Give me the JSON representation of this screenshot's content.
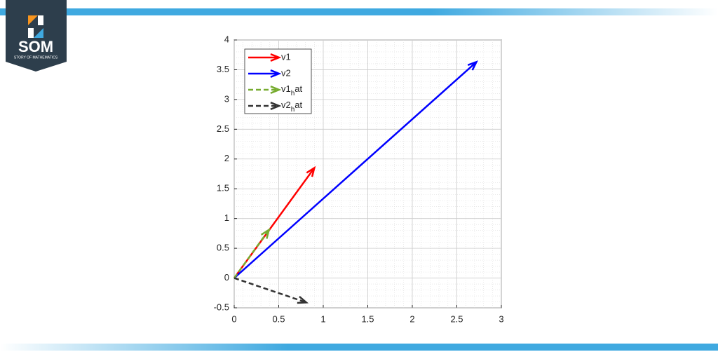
{
  "logo": {
    "name": "SOM",
    "tagline": "STORY OF MATHEMATICS"
  },
  "chart_data": {
    "type": "vector",
    "series": [
      {
        "name": "v1",
        "color": "#ff0000",
        "dashed": false,
        "x": [
          0,
          0.9
        ],
        "values": [
          0,
          1.85
        ]
      },
      {
        "name": "v2",
        "color": "#0000ff",
        "dashed": false,
        "x": [
          0,
          2.72
        ],
        "values": [
          0,
          3.63
        ]
      },
      {
        "name": "v1_hat",
        "color": "#77ac30",
        "dashed": true,
        "x": [
          0,
          0.39
        ],
        "values": [
          0,
          0.81
        ]
      },
      {
        "name": "v2_hat",
        "color": "#333333",
        "dashed": true,
        "x": [
          0,
          0.81
        ],
        "values": [
          0,
          -0.41
        ]
      }
    ],
    "xlim": [
      0,
      3
    ],
    "ylim": [
      -0.5,
      4
    ],
    "xticks": [
      0,
      0.5,
      1,
      1.5,
      2,
      2.5,
      3
    ],
    "yticks": [
      -0.5,
      0,
      0.5,
      1,
      1.5,
      2,
      2.5,
      3,
      3.5,
      4
    ],
    "grid": true,
    "minor_grid": true,
    "legend": "upper left"
  }
}
